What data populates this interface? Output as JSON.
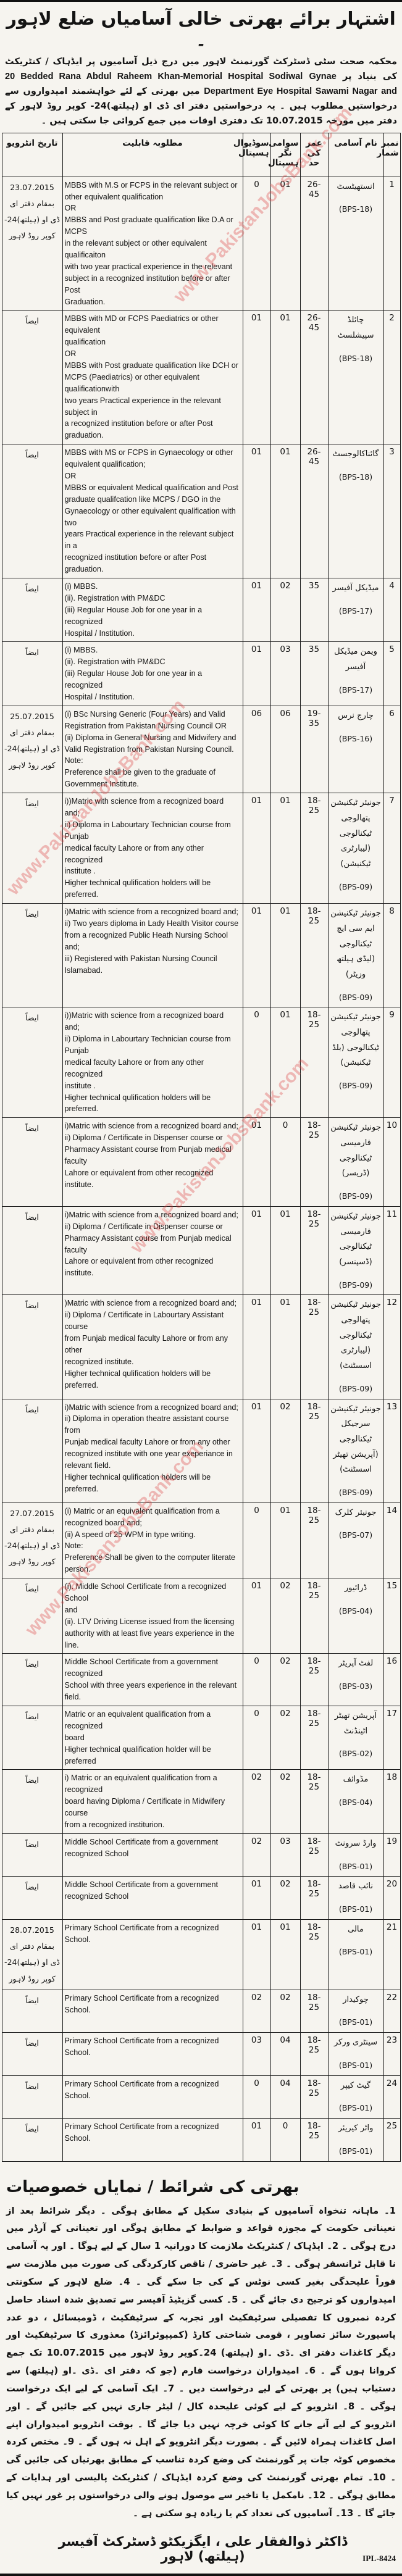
{
  "watermark": "www.PakistanJobsBank.com",
  "header": {
    "title": "اشتہار برائے بھرتی خالی آسامیاں ضلع لاہور ۔"
  },
  "intro": {
    "urdu_lead": "محکمہ صحت سٹی ڈسٹرکٹ گورنمنٹ لاہور میں درج ذیل آسامیوں پر ایڈہاک / کنٹریکٹ کی بنیاد پر",
    "hospital1_en": "20 Bedded Rana Abdul Raheem Khan-Memorial Hospital Sodiwal",
    "hospital2_en": "Gynae Department Eye Hospital Sawami Nagar and",
    "urdu_mid": "میں بھرتی کے لئے خواہشمند امیدواروں سے درخواستیں مطلوب ہیں ۔ یہ درخواستیں دفتر ای ڈی او (ہیلتھ)24- کوپر روڈ",
    "urdu_tail": "لاہور کے دفتر میں مورخہ 10.07.2015 تک دفتری اوقات میں جمع کروائی جا سکتی ہیں ۔"
  },
  "table": {
    "headers": {
      "sn": "نمبر شمار",
      "name": "نام آسامی",
      "age": "عمر کی حد",
      "sawami": "سوامی نگر ہسپتال",
      "sodiwal": "سوڈیوال ہسپتال",
      "qualification": "مطلوبہ قابلیت",
      "interview": "تاریخ انٹرویو"
    },
    "rows": [
      {
        "sn": "1",
        "name": "انستھیٹسٹ",
        "grade": "(BPS-18)",
        "age": "26-45",
        "sawami": "01",
        "sodiwal": "0",
        "qualification": "MBBS with  M.S or FCPS in the relevant subject or\nother equivalent qualification\nOR\nMBBS and Post graduate qualification like D.A or MCPS\nin the relevant subject  or other equivalent qualificaiton\nwith two year practical experience in the relevant\nsubject in a recognized institution before or after  Post\nGraduation.",
        "interview": "23.07.2015 بمقام دفتر ای ڈی او (ہیلتھ)24- کوپر روڈ لاہور"
      },
      {
        "sn": "2",
        "name": "چائلڈ سپیشلسٹ",
        "grade": "(BPS-18)",
        "age": "26-45",
        "sawami": "01",
        "sodiwal": "01",
        "qualification": "MBBS with MD or FCPS Paediatrics or other equivalent\nqualification\nOR\nMBBS with Post graduate qualification like  DCH or\nMCPS  (Paediatrics) or other equivalent qualificationwith\ntwo years Practical experience in the relevant subject in\na recognized institution before or after Post graduation.",
        "interview": "ایضاً"
      },
      {
        "sn": "3",
        "name": "گائناکالوجسٹ",
        "grade": "(BPS-18)",
        "age": "26-45",
        "sawami": "01",
        "sodiwal": "01",
        "qualification": "MBBS with MS or FCPS in Gynaecology or other\nequivalent qualification;\nOR\nMBBS or equivalent Medical qualification and Post\ngraduate qualifcation like MCPS / DGO in the\nGynaecology or other equivalent qualification with two\nyears Practical experience in the relevant subject in a\nrecognized institution before or after Post graduation.",
        "interview": "ایضاً"
      },
      {
        "sn": "4",
        "name": "میڈیکل آفیسر",
        "grade": "(BPS-17)",
        "age": "35",
        "sawami": "02",
        "sodiwal": "01",
        "qualification": "(i) MBBS.\n(ii). Registration with PM&DC\n(iii) Regular House Job for one year in a recognized\nHospital / Institution.",
        "interview": "ایضاً"
      },
      {
        "sn": "5",
        "name": "ویمن میڈیکل آفیسر",
        "grade": "(BPS-17)",
        "age": "35",
        "sawami": "03",
        "sodiwal": "01",
        "qualification": "(i) MBBS.\n(ii). Registration with PM&DC\n(iii) Regular House Job for one year in a recognized\nHospital / Institution.",
        "interview": "ایضاً"
      },
      {
        "sn": "6",
        "name": "چارج نرس",
        "grade": "(BPS-16)",
        "age": "19-35",
        "sawami": "06",
        "sodiwal": "06",
        "qualification": "(i) BSc Nursing Generic  (Four Years) and Valid\nRegistration from Pakistan Nursing Council OR\n(ii)  Diploma in General Nursing and Midwifery  and\nValid Registration from Pakistan Nursing Council.\nNote:\nPreference shall be given to the graduate of\nGovernment Institute.",
        "interview": "25.07.2015 بمقام دفتر ای ڈی او (ہیلتھ)24- کوپر روڈ لاہور"
      },
      {
        "sn": "7",
        "name": "جونیئر ٹیکنیشن پتھالوجی ٹیکنالوجی (لیبارٹری ٹیکنیشن)",
        "grade": "(BPS-09)",
        "age": "18-25",
        "sawami": "01",
        "sodiwal": "01",
        "qualification": "i))Matric with science from a recognized board and;\nii) Diploma in Labourtary Technician course from Punjab\nmedical faculty Lahore or from any other recognized\ninstitute .\nHigher technical qulification holders will be preferred.",
        "interview": "ایضاً"
      },
      {
        "sn": "8",
        "name": "جونیئر ٹیکنیشن ایم سی ایچ ٹیکنالوجی (لیڈی ہیلتھ وزیٹر)",
        "grade": "(BPS-09)",
        "age": "18-25",
        "sawami": "01",
        "sodiwal": "01",
        "qualification": "i)Matric with science from a recognized board and;\nii) Two years diploma in Lady Health Visitor  course\nfrom a recognized Public Heath Nursing School and;\niii) Registered with Pakistan Nursing Council Islamabad.",
        "interview": "ایضاً"
      },
      {
        "sn": "9",
        "name": "جونیئر ٹیکنیشن پتھالوجی ٹیکنالوجی (بلڈ ٹیکنیشن)",
        "grade": "(BPS-09)",
        "age": "18-25",
        "sawami": "01",
        "sodiwal": "0",
        "qualification": "i))Matric with science from a recognized board and;\nii) Diploma in Labourtary Technician course from Punjab\nmedical faculty Lahore or from any other recognized\ninstitute .\nHigher technical qulification holders will be preferred.",
        "interview": "ایضاً"
      },
      {
        "sn": "10",
        "name": "جونیئر ٹیکنیشن فارمیسی ٹیکنالوجی (ڈریسر)",
        "grade": "(BPS-09)",
        "age": "18-25",
        "sawami": "0",
        "sodiwal": "01",
        "qualification": "i)Matric with science from a recognized board and;\nii) Diploma / Certificate in Dispenser course or\nPharmacy Assistant course from Punjab medical faculty\nLahore or equivalent from other recognized institute.",
        "interview": "ایضاً"
      },
      {
        "sn": "11",
        "name": "جونیئر ٹیکنیشن فارمیسی ٹیکنالوجی (ڈسپنسر)",
        "grade": "(BPS-09)",
        "age": "18-25",
        "sawami": "01",
        "sodiwal": "01",
        "qualification": "i)Matric with science from a recognized board and;\nii) Diploma / Certificate in Dispenser course or\nPharmacy Assistant course from Punjab medical faculty\nLahore or equivalent from other recognized institute.",
        "interview": "ایضاً"
      },
      {
        "sn": "12",
        "name": "جونیئر ٹیکنیشن پتھالوجی ٹیکنالوجی (لیبارٹری اسسٹنٹ)",
        "grade": "(BPS-09)",
        "age": "18-25",
        "sawami": "01",
        "sodiwal": "01",
        "qualification": ")Matric with science from a recognized board and;\nii) Diploma / Certificate in Labourtary Assistant course\nfrom Punjab medical faculty Lahore or from any other\nrecognized institute.\nHigher technical qulification holders will be preferred.",
        "interview": "ایضاً"
      },
      {
        "sn": "13",
        "name": "جونیئر ٹیکنیشن سرجیکل ٹیکنالوجی (آپریشن تھیٹر اسسٹنٹ)",
        "grade": "(BPS-09)",
        "age": "18-25",
        "sawami": "02",
        "sodiwal": "01",
        "qualification": "i)Matric with science from a recognized board and;\nii) Diploma in operation theatre assistant course from\nPunjab medical faculty Lahore or from any other\nrecognized institute with one year exeperiance in\nrelevant field.\nHigher technical qulification holders will be preferred.",
        "interview": "ایضاً"
      },
      {
        "sn": "14",
        "name": "جونیئر کلرک",
        "grade": "(BPS-07)",
        "age": "18-25",
        "sawami": "01",
        "sodiwal": "0",
        "qualification": "(i) Matric or an equivalent qualification from a\nrecognized board and;\n(ii) A speed of 25 WPM in type writing.\nNote:\nPreference Shall be given to the computer literate\nperson.",
        "interview": "27.07.2015 بمقام دفتر ای ڈی او (ہیلتھ)24- کوپر روڈ لاہور"
      },
      {
        "sn": "15",
        "name": "ڈرائیور",
        "grade": "(BPS-04)",
        "age": "18-25",
        "sawami": "02",
        "sodiwal": "01",
        "qualification": "(i). Middle School Certificate from a recognized School\nand\n(ii). LTV Driving License issued from the licensing\nauthority with at least five years experience in the line.",
        "interview": "ایضاً"
      },
      {
        "sn": "16",
        "name": "لفٹ آپریٹر",
        "grade": "(BPS-03)",
        "age": "18-25",
        "sawami": "02",
        "sodiwal": "0",
        "qualification": "Middle School Certificate from a government recognized\nSchool with three years experience in the relevant field.",
        "interview": "ایضاً"
      },
      {
        "sn": "17",
        "name": "آپریشن تھیٹر اٹینڈنٹ",
        "grade": "(BPS-02)",
        "age": "18-25",
        "sawami": "02",
        "sodiwal": "0",
        "qualification": "Matric or an equivalent qualification from a recognized\nboard\nHigher technical qualification holder will be preferred",
        "interview": "ایضاً"
      },
      {
        "sn": "18",
        "name": "مڈوائف",
        "grade": "(BPS-04)",
        "age": "18-25",
        "sawami": "02",
        "sodiwal": "02",
        "qualification": "i) Matric or an equivalent qualification from a recognized\nboard having Diploma / Certificate in Midwifery course\nfrom a recognized institurion.",
        "interview": "ایضاً"
      },
      {
        "sn": "19",
        "name": "وارڈ سرونٹ",
        "grade": "(BPS-01)",
        "age": "18-25",
        "sawami": "03",
        "sodiwal": "02",
        "qualification": "Middle School Certificate from a government\nrecognized School",
        "interview": "ایضاً"
      },
      {
        "sn": "20",
        "name": "نائب قاصد",
        "grade": "(BPS-01)",
        "age": "18-25",
        "sawami": "02",
        "sodiwal": "01",
        "qualification": "Middle School Certificate from a government\nrecognized School",
        "interview": "ایضاً"
      },
      {
        "sn": "21",
        "name": "مالی",
        "grade": "(BPS-01)",
        "age": "18-25",
        "sawami": "01",
        "sodiwal": "01",
        "qualification": "Primary School Certificate from a recognized School.",
        "interview": "28.07.2015 بمقام دفتر ای ڈی او (ہیلتھ)24- کوپر روڈ لاہور"
      },
      {
        "sn": "22",
        "name": "چوکیدار",
        "grade": "(BPS-01)",
        "age": "18-25",
        "sawami": "02",
        "sodiwal": "02",
        "qualification": "Primary School Certificate from a recognized School.",
        "interview": "ایضاً"
      },
      {
        "sn": "23",
        "name": "سینٹری ورکر",
        "grade": "(BPS-01)",
        "age": "18-25",
        "sawami": "04",
        "sodiwal": "03",
        "qualification": "Primary School Certificate from a recognized School.",
        "interview": "ایضاً"
      },
      {
        "sn": "24",
        "name": "گیٹ کیپر",
        "grade": "(BPS-01)",
        "age": "18-25",
        "sawami": "04",
        "sodiwal": "0",
        "qualification": "Primary School Certificate from a recognized School.",
        "interview": "ایضاً"
      },
      {
        "sn": "25",
        "name": "واٹر کیریئر",
        "grade": "(BPS-01)",
        "age": "18-25",
        "sawami": "0",
        "sodiwal": "01",
        "qualification": "Primary School Certificate from a recognized School.",
        "interview": "ایضاً"
      }
    ]
  },
  "footer": {
    "heading": "بھرتی کی شرائط / نمایاں خصوصیات",
    "terms": "1۔ ماہانہ تنخواہ آسامیوں کے بنیادی سکیل کے مطابق ہوگی ۔ دیگر شرائط بعد از تعیناتی حکومت کے مجوزہ قواعد و ضوابط کے مطابق ہوگی اور تعیناتی کے آرڈر میں درج ہوگی ۔ 2۔ ایڈہاک / کنٹریکٹ ملازمت کا دورانیہ 1 سال کے لیے ہوگا ۔ اور یہ آسامی نا قابل ٹرانسفر ہوگی ۔ 3۔ غیر حاضری / ناقص کارکردگی کی صورت میں ملازمت سے فوراً علیحدگی بغیر کسی نوٹس کے کی جا سکے گی ۔ 4۔ ضلع لاہور کے سکونتی امیدواروں کو ترجیح دی جائے گی ۔ 5۔ کسی گزیٹیڈ آفیسر سے تصدیق شدہ اسناد حاصل کردہ نمبروں کا تفصیلی سرٹیفکیٹ اور تجربہ کے سرٹیفکیٹ ، ڈومیسائل ، دو عدد پاسپورٹ سائز تصاویر ، قومی شناختی کارڈ (کمپیوٹرائزڈ) معذوری کا سرٹیفکیٹ اور دیگر کاغذات دفتر ای ۔ڈی ۔او (ہیلتھ) 24۔کوپر روڈ لاہور میں 10.07.2015 تک جمع کروانا ہوں گے ۔ 6۔ امیدواران درخواست فارم (جو کہ دفتر ای ۔ڈی ۔او (ہیلتھ) سے دستیاب ہیں) پر بھرتی کے لیے درخواست دیں ۔ 7۔ ایک آسامی کے لیے ایک درخواست ہوگی ۔ 8۔ انٹرویو کے لیے کوئی علیحدہ کال / لیٹر جاری نہیں کیے جائیں گے ۔ اور انٹرویو کے لیے آنے جانے کا کوئی خرچہ نہیں دیا جائے گا ۔ بوقت انٹرویو امیدواران اپنے اصل کاغذات ہمراہ لائیں گے ۔ بصورت دیگر انٹرویو کے اہل نہ ہوں گے ۔ 9۔ مختص کردہ مخصوص کوٹہ جات پر گورنمنٹ کی وضع کردہ تناسب کے مطابق بھرتیاں کی جائیں گی ۔ 10۔ تمام بھرتی گورنمنٹ کی وضع کردہ ایڈہاک / کنٹریکٹ پالیسی اور ہدایات کے مطابق ہوگی ۔ 12۔ نامکمل یا تاخیر سے موصول ہونے والی درخواستوں پر غور نہیں کیا جائے گا ۔ 13۔ آسامیوں کی تعداد کم یا زیادہ ہو سکتی ہے ۔",
    "signature": "ڈاکٹر ذوالفقار علی ، ایگزیکٹو ڈسٹرکٹ آفیسر (ہیلتھ) لاہور",
    "ref": "IPL-8424"
  }
}
